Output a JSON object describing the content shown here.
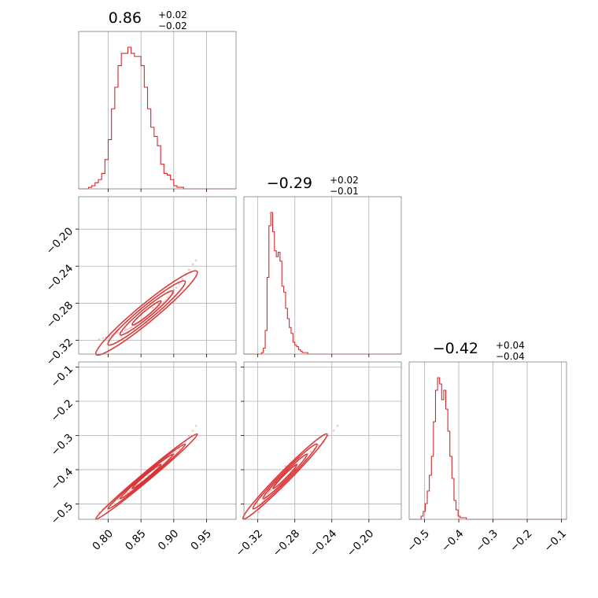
{
  "chart_data": {
    "type": "corner",
    "colors": {
      "series": "#d62728",
      "grid": "#b0b0b0",
      "frame": "#808080"
    },
    "parameters": [
      {
        "range": [
          0.755,
          0.995
        ],
        "ticks": [
          0.8,
          0.85,
          0.9,
          0.95
        ],
        "tick_labels": [
          "0.80",
          "0.85",
          "0.90",
          "0.95"
        ],
        "title": {
          "value": "0.86",
          "plus": "+0.02",
          "minus": "−0.02"
        },
        "hist": {
          "edges_start": 0.77,
          "bin_width": 0.005,
          "counts": [
            1,
            2,
            4,
            6,
            10,
            19,
            32,
            52,
            66,
            80,
            88,
            88,
            92,
            88,
            86,
            86,
            80,
            66,
            52,
            40,
            34,
            28,
            16,
            10,
            9,
            6,
            2,
            1,
            1
          ]
        }
      },
      {
        "range": [
          -0.335,
          -0.165
        ],
        "ticks": [
          -0.32,
          -0.28,
          -0.24,
          -0.2
        ],
        "tick_labels": [
          "−0.32",
          "−0.28",
          "−0.24",
          "−0.20"
        ],
        "title": {
          "value": "−0.29",
          "plus": "+0.02",
          "minus": "−0.01"
        },
        "hist": {
          "edges_start": -0.316,
          "bin_width": 0.002,
          "counts": [
            1,
            4,
            16,
            52,
            87,
            96,
            83,
            70,
            66,
            69,
            63,
            46,
            42,
            31,
            24,
            18,
            14,
            8,
            6,
            5,
            3,
            2,
            1,
            1,
            1
          ]
        }
      },
      {
        "range": [
          -0.545,
          -0.085
        ],
        "ticks": [
          -0.5,
          -0.4,
          -0.3,
          -0.2,
          -0.1
        ],
        "tick_labels": [
          "−0.5",
          "−0.4",
          "−0.3",
          "−0.2",
          "−0.1"
        ],
        "title": {
          "value": "−0.42",
          "plus": "+0.04",
          "minus": "−0.04"
        },
        "hist": {
          "edges_start": -0.51,
          "bin_width": 0.006,
          "counts": [
            2,
            5,
            10,
            18,
            28,
            40,
            62,
            82,
            90,
            86,
            76,
            82,
            70,
            56,
            40,
            26,
            12,
            6,
            2,
            1,
            1,
            1
          ]
        }
      }
    ],
    "scatter_samples": [
      [
        0.786,
        -0.319,
        -0.524
      ],
      [
        0.792,
        -0.318,
        -0.515
      ],
      [
        0.797,
        -0.317,
        -0.508
      ],
      [
        0.802,
        -0.316,
        -0.501
      ],
      [
        0.806,
        -0.315,
        -0.495
      ],
      [
        0.81,
        -0.313,
        -0.49
      ],
      [
        0.814,
        -0.312,
        -0.486
      ],
      [
        0.818,
        -0.312,
        -0.481
      ],
      [
        0.822,
        -0.311,
        -0.477
      ],
      [
        0.826,
        -0.309,
        -0.471
      ],
      [
        0.829,
        -0.308,
        -0.466
      ],
      [
        0.833,
        -0.307,
        -0.462
      ],
      [
        0.836,
        -0.306,
        -0.458
      ],
      [
        0.84,
        -0.304,
        -0.452
      ],
      [
        0.843,
        -0.303,
        -0.447
      ],
      [
        0.846,
        -0.301,
        -0.443
      ],
      [
        0.849,
        -0.3,
        -0.439
      ],
      [
        0.852,
        -0.299,
        -0.435
      ],
      [
        0.855,
        -0.297,
        -0.431
      ],
      [
        0.858,
        -0.296,
        -0.426
      ],
      [
        0.861,
        -0.294,
        -0.421
      ],
      [
        0.864,
        -0.293,
        -0.417
      ],
      [
        0.867,
        -0.291,
        -0.412
      ],
      [
        0.87,
        -0.289,
        -0.407
      ],
      [
        0.873,
        -0.287,
        -0.403
      ],
      [
        0.876,
        -0.285,
        -0.398
      ],
      [
        0.879,
        -0.283,
        -0.392
      ],
      [
        0.882,
        -0.281,
        -0.387
      ],
      [
        0.885,
        -0.279,
        -0.382
      ],
      [
        0.888,
        -0.277,
        -0.377
      ],
      [
        0.891,
        -0.274,
        -0.371
      ],
      [
        0.894,
        -0.272,
        -0.366
      ],
      [
        0.897,
        -0.269,
        -0.36
      ],
      [
        0.9,
        -0.266,
        -0.354
      ],
      [
        0.904,
        -0.263,
        -0.347
      ],
      [
        0.908,
        -0.259,
        -0.339
      ],
      [
        0.913,
        -0.254,
        -0.329
      ],
      [
        0.918,
        -0.249,
        -0.318
      ],
      [
        0.923,
        -0.244,
        -0.302
      ],
      [
        0.929,
        -0.238,
        -0.286
      ],
      [
        0.934,
        -0.234,
        -0.272
      ],
      [
        0.815,
        -0.309,
        -0.484
      ],
      [
        0.83,
        -0.312,
        -0.47
      ],
      [
        0.845,
        -0.296,
        -0.449
      ],
      [
        0.858,
        -0.301,
        -0.427
      ],
      [
        0.868,
        -0.285,
        -0.415
      ],
      [
        0.88,
        -0.29,
        -0.39
      ],
      [
        0.892,
        -0.268,
        -0.372
      ],
      [
        0.862,
        -0.298,
        -0.418
      ],
      [
        0.84,
        -0.309,
        -0.457
      ],
      [
        0.876,
        -0.28,
        -0.402
      ],
      [
        0.82,
        -0.316,
        -0.474
      ],
      [
        0.85,
        -0.293,
        -0.442
      ]
    ]
  }
}
